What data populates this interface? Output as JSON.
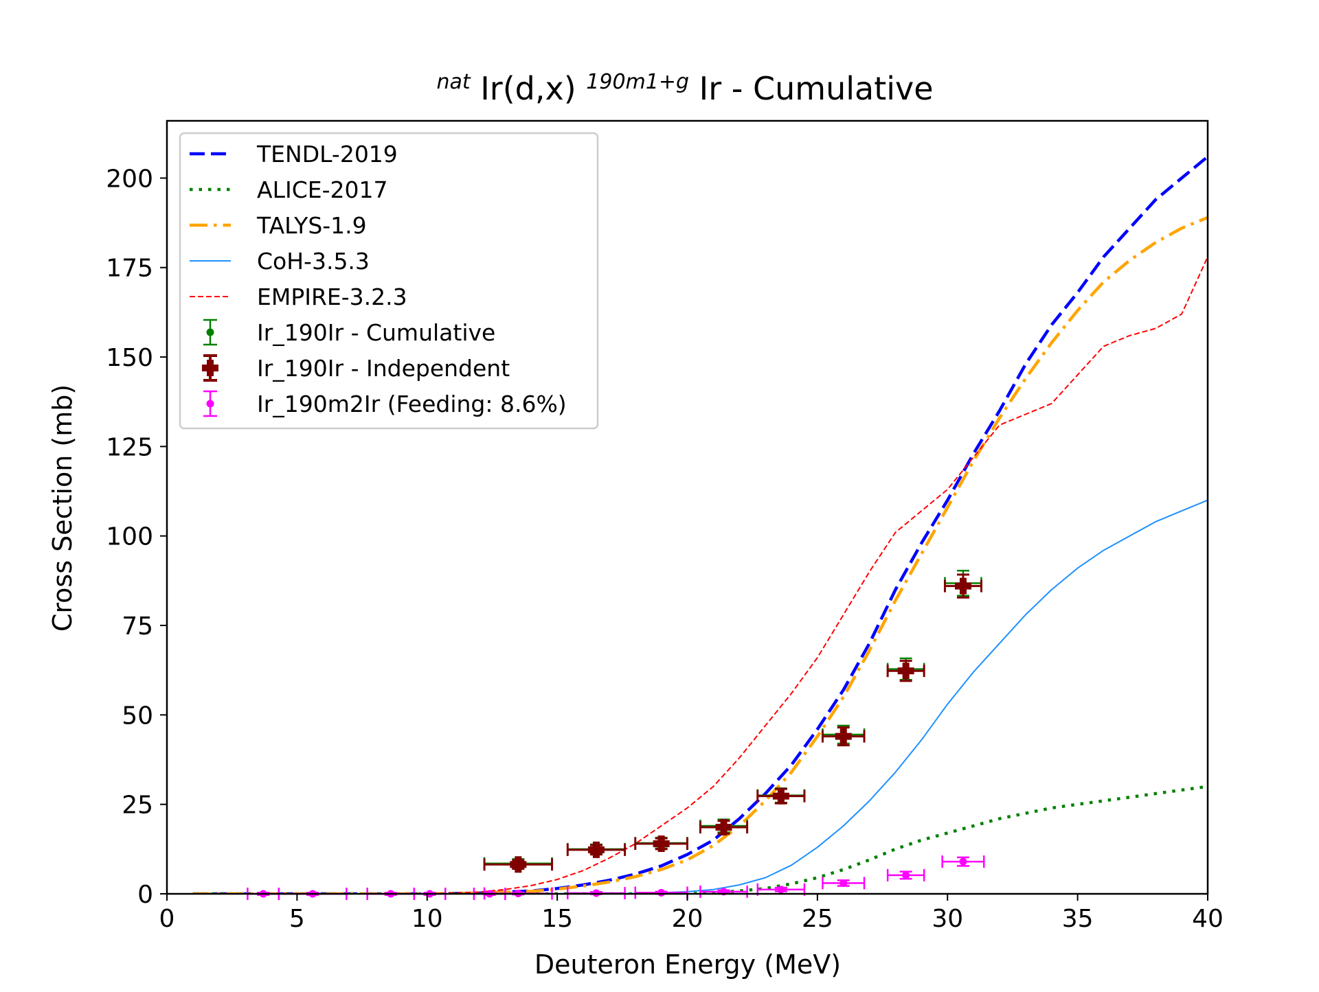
{
  "chart_data": {
    "type": "line",
    "title": {
      "sup_prefix": "nat",
      "main1": "Ir(d,x)",
      "sup_mid": "190m1+g",
      "main2": "Ir - Cumulative"
    },
    "xlabel": "Deuteron Energy (MeV)",
    "ylabel": "Cross Section (mb)",
    "xlim": [
      0,
      40
    ],
    "ylim": [
      0,
      216
    ],
    "xticks": [
      0,
      5,
      10,
      15,
      20,
      25,
      30,
      35,
      40
    ],
    "yticks": [
      0,
      25,
      50,
      75,
      100,
      125,
      150,
      175,
      200
    ],
    "grid": false,
    "legend_position": "upper-left",
    "lines": [
      {
        "name": "TENDL-2019",
        "color": "#0000ff",
        "style": "dashed",
        "x": [
          1,
          5,
          10,
          12,
          14,
          15,
          16,
          17,
          18,
          19,
          20,
          21,
          22,
          23,
          24,
          25,
          26,
          27,
          28,
          29,
          30,
          31,
          32,
          33,
          34,
          35,
          36,
          37,
          38,
          39,
          40
        ],
        "y": [
          0,
          0,
          0,
          0.2,
          0.8,
          1.5,
          2.5,
          3.8,
          5.5,
          7.8,
          11,
          15,
          21,
          28,
          36,
          46,
          57,
          70,
          85,
          98,
          110,
          123,
          135,
          148,
          159,
          168,
          178,
          186,
          194,
          200,
          206
        ]
      },
      {
        "name": "ALICE-2017",
        "color": "#008000",
        "style": "dotted",
        "x": [
          1,
          5,
          10,
          15,
          20,
          21,
          22,
          23,
          24,
          25,
          26,
          27,
          28,
          29,
          30,
          31,
          32,
          33,
          34,
          35,
          36,
          37,
          38,
          39,
          40
        ],
        "y": [
          0,
          0,
          0,
          0,
          0,
          0.3,
          0.8,
          1.5,
          2.8,
          4.5,
          6.8,
          9.5,
          12.5,
          15,
          17,
          19,
          21,
          22.5,
          24,
          25,
          26,
          27,
          28,
          29,
          30
        ]
      },
      {
        "name": "TALYS-1.9",
        "color": "#ffa500",
        "style": "dashdot",
        "x": [
          1,
          5,
          10,
          12,
          14,
          15,
          16,
          17,
          18,
          19,
          20,
          21,
          22,
          23,
          24,
          25,
          26,
          27,
          28,
          29,
          30,
          31,
          32,
          33,
          34,
          35,
          36,
          37,
          38,
          39,
          40
        ],
        "y": [
          0,
          0,
          0,
          0.2,
          0.7,
          1.3,
          2.2,
          3.3,
          4.8,
          6.8,
          9.5,
          13.5,
          19,
          26,
          34,
          44,
          55,
          68,
          82,
          95,
          108,
          121,
          133,
          144,
          154,
          163,
          171,
          177,
          182,
          186,
          189
        ]
      },
      {
        "name": "CoH-3.5.3",
        "color": "#1e90ff",
        "style": "solid",
        "x": [
          1,
          5,
          10,
          15,
          18,
          19,
          20,
          21,
          22,
          23,
          24,
          25,
          26,
          27,
          28,
          29,
          30,
          31,
          32,
          33,
          34,
          35,
          36,
          37,
          38,
          39,
          40
        ],
        "y": [
          0,
          0,
          0,
          0,
          0.1,
          0.3,
          0.6,
          1.2,
          2.5,
          4.5,
          8,
          13,
          19,
          26,
          34,
          43,
          53,
          62,
          70,
          78,
          85,
          91,
          96,
          100,
          104,
          107,
          110
        ]
      },
      {
        "name": "EMPIRE-3.2.3",
        "color": "#ff0000",
        "style": "dashed-thin",
        "x": [
          1,
          5,
          10,
          12,
          13,
          14,
          15,
          16,
          17,
          18,
          19,
          20,
          21,
          22,
          23,
          24,
          25,
          26,
          27,
          28,
          29,
          30,
          31,
          32,
          33,
          34,
          35,
          36,
          37,
          38,
          39,
          40
        ],
        "y": [
          0,
          0,
          0,
          0.5,
          1.2,
          2.3,
          4,
          6.5,
          10,
          14,
          19,
          24,
          30,
          38,
          47,
          56,
          66,
          78,
          90,
          101,
          107,
          113,
          122,
          131,
          134,
          137,
          145,
          153,
          156,
          158,
          162,
          178
        ]
      }
    ],
    "errorbar_series": [
      {
        "name": "Ir_190Ir - Cumulative",
        "color": "#008000",
        "marker": "circle",
        "points": [
          {
            "x": 13.5,
            "y": 8.5,
            "xerr": 1.3,
            "yerr": 1.2
          },
          {
            "x": 16.5,
            "y": 12.5,
            "xerr": 1.1,
            "yerr": 1.3
          },
          {
            "x": 19.0,
            "y": 14.2,
            "xerr": 1.0,
            "yerr": 1.5
          },
          {
            "x": 21.4,
            "y": 19.0,
            "xerr": 0.9,
            "yerr": 1.8
          },
          {
            "x": 23.6,
            "y": 27.5,
            "xerr": 0.9,
            "yerr": 2.0
          },
          {
            "x": 26.0,
            "y": 44.5,
            "xerr": 0.8,
            "yerr": 2.5
          },
          {
            "x": 28.4,
            "y": 62.8,
            "xerr": 0.7,
            "yerr": 3.0
          },
          {
            "x": 30.6,
            "y": 86.8,
            "xerr": 0.7,
            "yerr": 3.5
          }
        ]
      },
      {
        "name": "Ir_190Ir - Independent",
        "color": "#800000",
        "marker": "plus",
        "points": [
          {
            "x": 13.5,
            "y": 8.2,
            "xerr": 1.3,
            "yerr": 1.2
          },
          {
            "x": 16.5,
            "y": 12.3,
            "xerr": 1.1,
            "yerr": 1.3
          },
          {
            "x": 19.0,
            "y": 14.0,
            "xerr": 1.0,
            "yerr": 1.5
          },
          {
            "x": 21.4,
            "y": 18.6,
            "xerr": 0.9,
            "yerr": 1.8
          },
          {
            "x": 23.6,
            "y": 27.3,
            "xerr": 0.9,
            "yerr": 2.0
          },
          {
            "x": 26.0,
            "y": 44.0,
            "xerr": 0.8,
            "yerr": 2.5
          },
          {
            "x": 28.4,
            "y": 62.3,
            "xerr": 0.7,
            "yerr": 2.8
          },
          {
            "x": 30.6,
            "y": 86.0,
            "xerr": 0.7,
            "yerr": 3.2
          }
        ]
      },
      {
        "name": "Ir_190m2Ir (Feeding: 8.6%)",
        "color": "#ff00ff",
        "marker": "circle",
        "points": [
          {
            "x": 3.7,
            "y": 0.0,
            "xerr": 0.6,
            "yerr": 0.3
          },
          {
            "x": 5.6,
            "y": 0.0,
            "xerr": 1.3,
            "yerr": 0.3
          },
          {
            "x": 8.6,
            "y": 0.0,
            "xerr": 0.9,
            "yerr": 0.3
          },
          {
            "x": 10.1,
            "y": 0.0,
            "xerr": 0.6,
            "yerr": 0.3
          },
          {
            "x": 12.4,
            "y": 0.0,
            "xerr": 0.6,
            "yerr": 0.3
          },
          {
            "x": 13.5,
            "y": 0.1,
            "xerr": 1.3,
            "yerr": 0.3
          },
          {
            "x": 16.5,
            "y": 0.2,
            "xerr": 1.1,
            "yerr": 0.3
          },
          {
            "x": 19.0,
            "y": 0.3,
            "xerr": 1.0,
            "yerr": 0.3
          },
          {
            "x": 21.4,
            "y": 0.6,
            "xerr": 0.9,
            "yerr": 0.4
          },
          {
            "x": 23.6,
            "y": 1.2,
            "xerr": 0.9,
            "yerr": 0.5
          },
          {
            "x": 26.0,
            "y": 3.0,
            "xerr": 0.8,
            "yerr": 0.8
          },
          {
            "x": 28.4,
            "y": 5.2,
            "xerr": 0.7,
            "yerr": 1.0
          },
          {
            "x": 30.6,
            "y": 9.0,
            "xerr": 0.8,
            "yerr": 1.2
          }
        ]
      }
    ]
  }
}
